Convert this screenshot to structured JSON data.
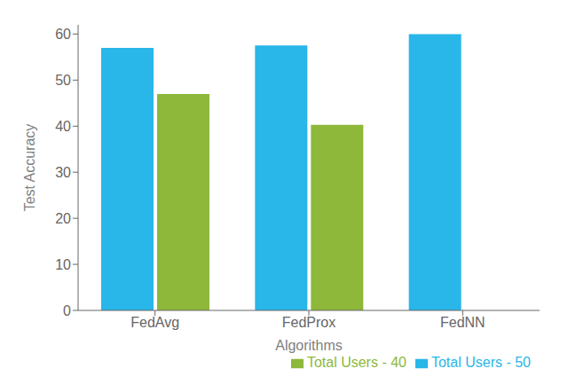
{
  "chart_data": {
    "type": "bar",
    "categories": [
      "FedAvg",
      "FedProx",
      "FedNN"
    ],
    "series": [
      {
        "name": "Total Users - 50",
        "color": "#29B6E8",
        "values": [
          57,
          57.5,
          60
        ]
      },
      {
        "name": "Total Users - 40",
        "color": "#8DB83A",
        "values": [
          47,
          40.3,
          null
        ]
      }
    ],
    "xlabel": "Algorithms",
    "ylabel": "Test Accuracy",
    "ylim": [
      0,
      62
    ],
    "yticks": [
      0,
      10,
      20,
      30,
      40,
      50,
      60
    ],
    "grid": false,
    "legend": "lower right"
  }
}
